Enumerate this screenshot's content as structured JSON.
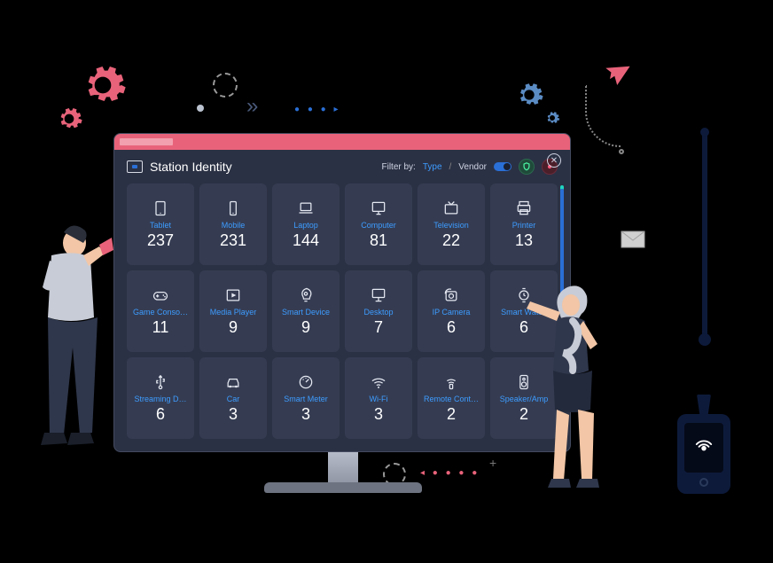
{
  "app": {
    "title": "Station Identity"
  },
  "header": {
    "filter_label": "Filter by:",
    "filter_type": "Type",
    "filter_sep": "/",
    "filter_vendor": "Vendor"
  },
  "colors": {
    "accent_red": "#e8637a",
    "accent_blue": "#2a6fd6",
    "link_blue": "#3d9cff",
    "panel_bg": "#2b3144",
    "tile_bg": "#353c52",
    "scroll_thumb": "#2a6fd6",
    "scroll_accent": "#1fd6bf"
  },
  "tiles": [
    {
      "label": "Tablet",
      "count": 237,
      "icon": "tablet"
    },
    {
      "label": "Mobile",
      "count": 231,
      "icon": "mobile"
    },
    {
      "label": "Laptop",
      "count": 144,
      "icon": "laptop"
    },
    {
      "label": "Computer",
      "count": 81,
      "icon": "computer"
    },
    {
      "label": "Television",
      "count": 22,
      "icon": "tv"
    },
    {
      "label": "Printer",
      "count": 13,
      "icon": "printer"
    },
    {
      "label": "Game Conso…",
      "count": 11,
      "icon": "game"
    },
    {
      "label": "Media Player",
      "count": 9,
      "icon": "media"
    },
    {
      "label": "Smart Device",
      "count": 9,
      "icon": "smart"
    },
    {
      "label": "Desktop",
      "count": 7,
      "icon": "desktop"
    },
    {
      "label": "IP Camera",
      "count": 6,
      "icon": "camera"
    },
    {
      "label": "Smart Watch",
      "count": 6,
      "icon": "watch"
    },
    {
      "label": "Streaming D…",
      "count": 6,
      "icon": "usb"
    },
    {
      "label": "Car",
      "count": 3,
      "icon": "car"
    },
    {
      "label": "Smart Meter",
      "count": 3,
      "icon": "meter"
    },
    {
      "label": "Wi-Fi",
      "count": 3,
      "icon": "wifi"
    },
    {
      "label": "Remote Cont…",
      "count": 2,
      "icon": "remote"
    },
    {
      "label": "Speaker/Amp",
      "count": 2,
      "icon": "speaker"
    }
  ]
}
